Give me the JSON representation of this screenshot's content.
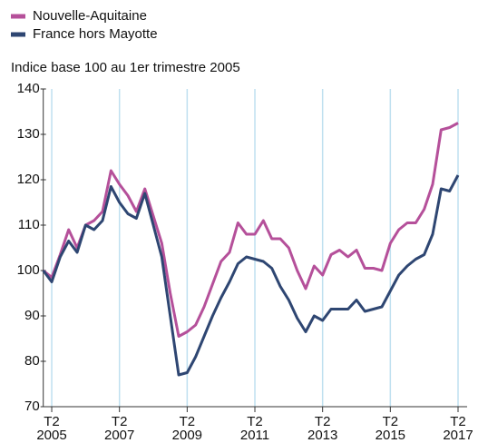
{
  "chart_data": {
    "type": "line",
    "subtitle": "Indice base 100 au 1er trimestre 2005",
    "categories": [
      null,
      "T2 2005",
      null,
      null,
      null,
      null,
      null,
      null,
      null,
      "T2 2007",
      null,
      null,
      null,
      null,
      null,
      null,
      null,
      "T2 2009",
      null,
      null,
      null,
      null,
      null,
      null,
      null,
      "T2 2011",
      null,
      null,
      null,
      null,
      null,
      null,
      null,
      "T2 2013",
      null,
      null,
      null,
      null,
      null,
      null,
      null,
      "T2 2015",
      null,
      null,
      null,
      null,
      null,
      null,
      null,
      "T2 2017"
    ],
    "series": [
      {
        "name": "Nouvelle-Aquitaine",
        "color": "#b5509a",
        "values": [
          100,
          98.5,
          103.5,
          109,
          105,
          110,
          111,
          113,
          122,
          119,
          116.5,
          113,
          118,
          112,
          106,
          95,
          85.5,
          86.5,
          88,
          92,
          97,
          102,
          104,
          110.5,
          108,
          108,
          111,
          107,
          107,
          105,
          100,
          96,
          101,
          99,
          103.5,
          104.5,
          103,
          104.5,
          100.5,
          100.5,
          100,
          106,
          109,
          110.5,
          110.5,
          113.5,
          119,
          131,
          131.5,
          132.5
        ]
      },
      {
        "name": "France hors Mayotte",
        "color": "#2e4672",
        "values": [
          100,
          97.5,
          103,
          106.5,
          104,
          110,
          109,
          111,
          118.5,
          115,
          112.5,
          111.5,
          117,
          110,
          103,
          90,
          77,
          77.5,
          81,
          85.5,
          90,
          94,
          97.5,
          101.5,
          103,
          102.5,
          102,
          100.5,
          96.5,
          93.5,
          89.5,
          86.5,
          90,
          89,
          91.5,
          91.5,
          91.5,
          93.5,
          91,
          91.5,
          92,
          95.5,
          99,
          101,
          102.5,
          103.5,
          108,
          118,
          117.5,
          121
        ]
      }
    ],
    "ylim": [
      70,
      140
    ],
    "yticks": [
      70,
      80,
      90,
      100,
      110,
      120,
      130,
      140
    ],
    "grid": true
  }
}
